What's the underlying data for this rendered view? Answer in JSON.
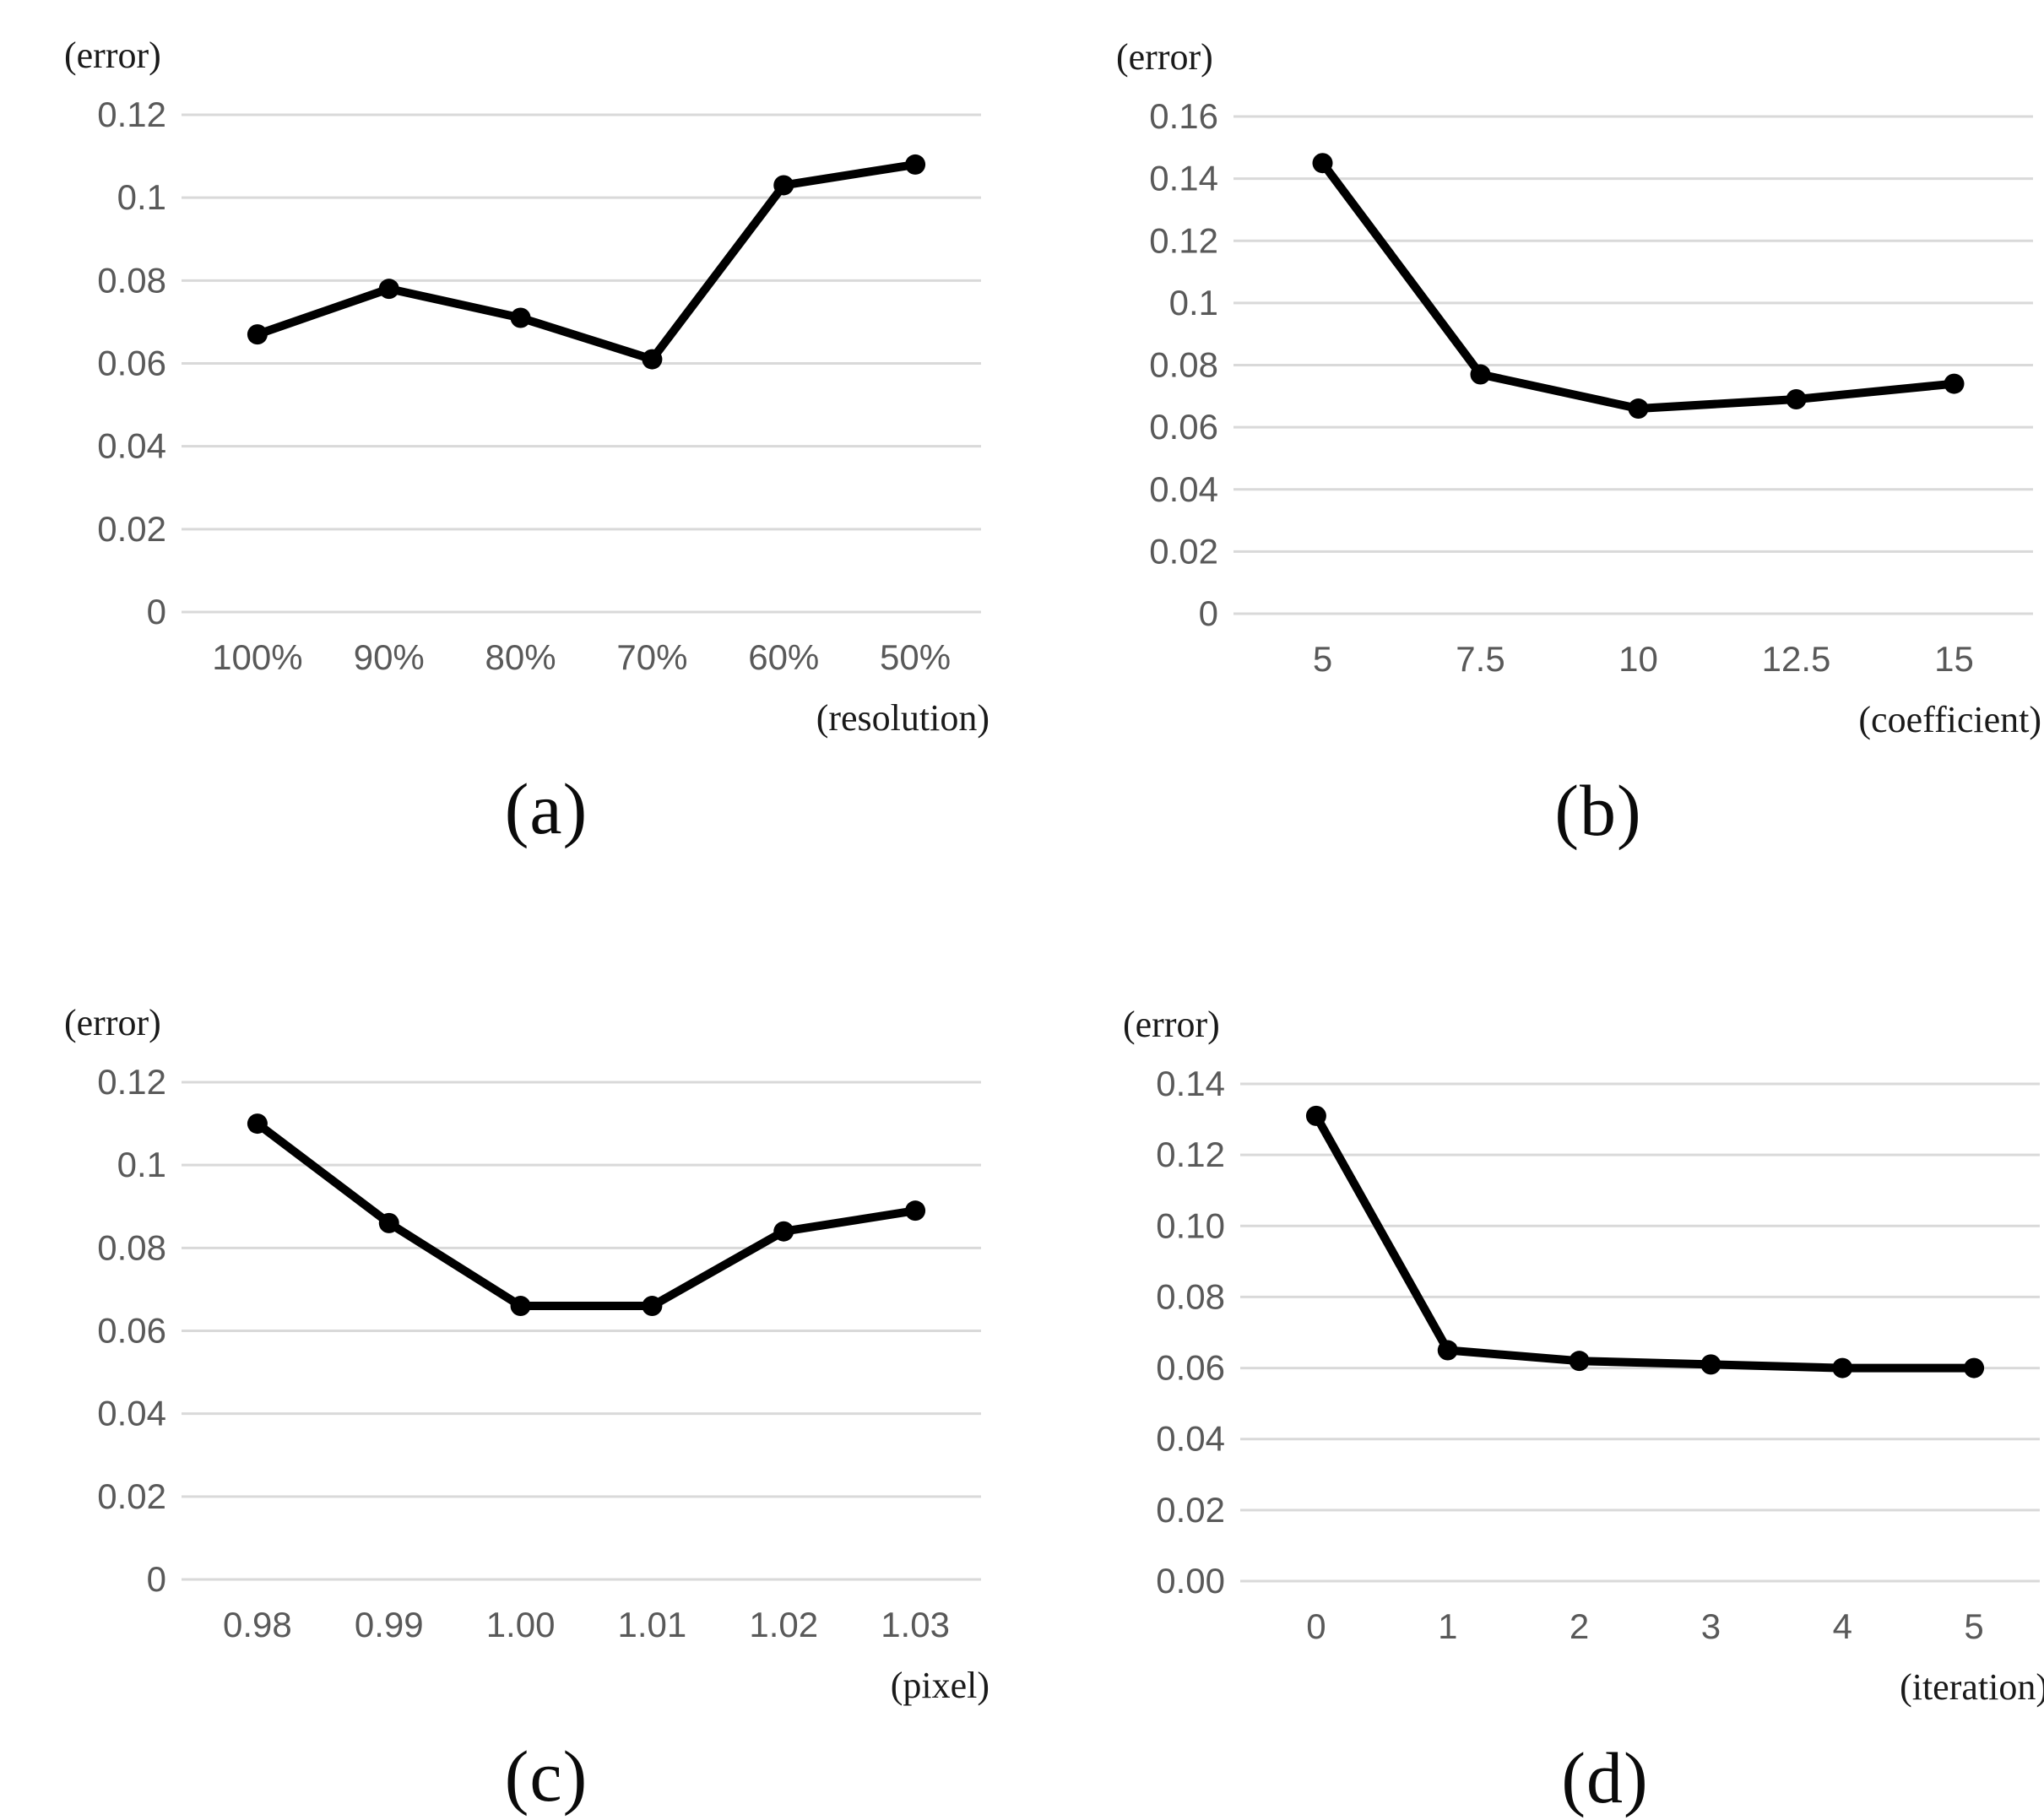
{
  "page": {
    "background": "#ffffff"
  },
  "styles": {
    "line_color": "#000000",
    "marker_color": "#000000",
    "grid_color": "#d9d9d9",
    "tick_label_color": "#595959",
    "unit_label_color": "#1a1a1a"
  },
  "chart_data": [
    {
      "id": "a",
      "type": "line",
      "caption": "(a)",
      "ylabel": "(error)",
      "xlabel": "(resolution)",
      "categories": [
        "100%",
        "90%",
        "80%",
        "70%",
        "60%",
        "50%"
      ],
      "values": [
        0.067,
        0.078,
        0.071,
        0.061,
        0.103,
        0.108
      ],
      "ylim": [
        0,
        0.12
      ],
      "ytick_labels": [
        "0.12",
        "0.1",
        "0.08",
        "0.06",
        "0.04",
        "0.02",
        "0"
      ],
      "grid": "horizontal",
      "legend": "none"
    },
    {
      "id": "b",
      "type": "line",
      "caption": "(b)",
      "ylabel": "(error)",
      "xlabel": "(coefficient)",
      "categories": [
        "5",
        "7.5",
        "10",
        "12.5",
        "15"
      ],
      "values": [
        0.145,
        0.077,
        0.066,
        0.069,
        0.074
      ],
      "ylim": [
        0,
        0.16
      ],
      "ytick_labels": [
        "0.16",
        "0.14",
        "0.12",
        "0.1",
        "0.08",
        "0.06",
        "0.04",
        "0.02",
        "0"
      ],
      "grid": "horizontal",
      "legend": "none"
    },
    {
      "id": "c",
      "type": "line",
      "caption": "(c)",
      "ylabel": "(error)",
      "xlabel": "(pixel)",
      "categories": [
        "0.98",
        "0.99",
        "1.00",
        "1.01",
        "1.02",
        "1.03"
      ],
      "values": [
        0.11,
        0.086,
        0.066,
        0.066,
        0.084,
        0.089
      ],
      "ylim": [
        0,
        0.12
      ],
      "ytick_labels": [
        "0.12",
        "0.1",
        "0.08",
        "0.06",
        "0.04",
        "0.02",
        "0"
      ],
      "grid": "horizontal",
      "legend": "none"
    },
    {
      "id": "d",
      "type": "line",
      "caption": "(d)",
      "ylabel": "(error)",
      "xlabel": "(iteration)",
      "categories": [
        "0",
        "1",
        "2",
        "3",
        "4",
        "5"
      ],
      "values": [
        0.131,
        0.065,
        0.062,
        0.061,
        0.06,
        0.06
      ],
      "ylim": [
        0,
        0.14
      ],
      "ytick_labels": [
        "0.14",
        "0.12",
        "0.10",
        "0.08",
        "0.06",
        "0.04",
        "0.02",
        "0.00"
      ],
      "grid": "horizontal",
      "legend": "none"
    }
  ]
}
